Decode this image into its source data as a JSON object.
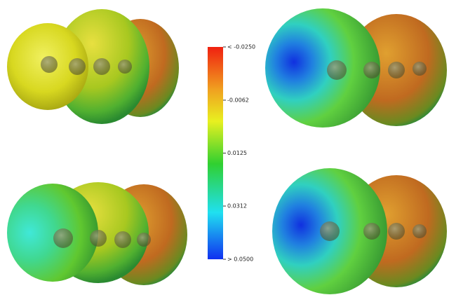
{
  "colorbar": {
    "range": [
      -0.025,
      0.05
    ],
    "ticks": [
      {
        "value": -0.025,
        "label": "< -0.0250"
      },
      -0.0062,
      0.0125,
      0.0312,
      {
        "value": 0.05,
        "label": "> 0.0500"
      }
    ]
  }
}
